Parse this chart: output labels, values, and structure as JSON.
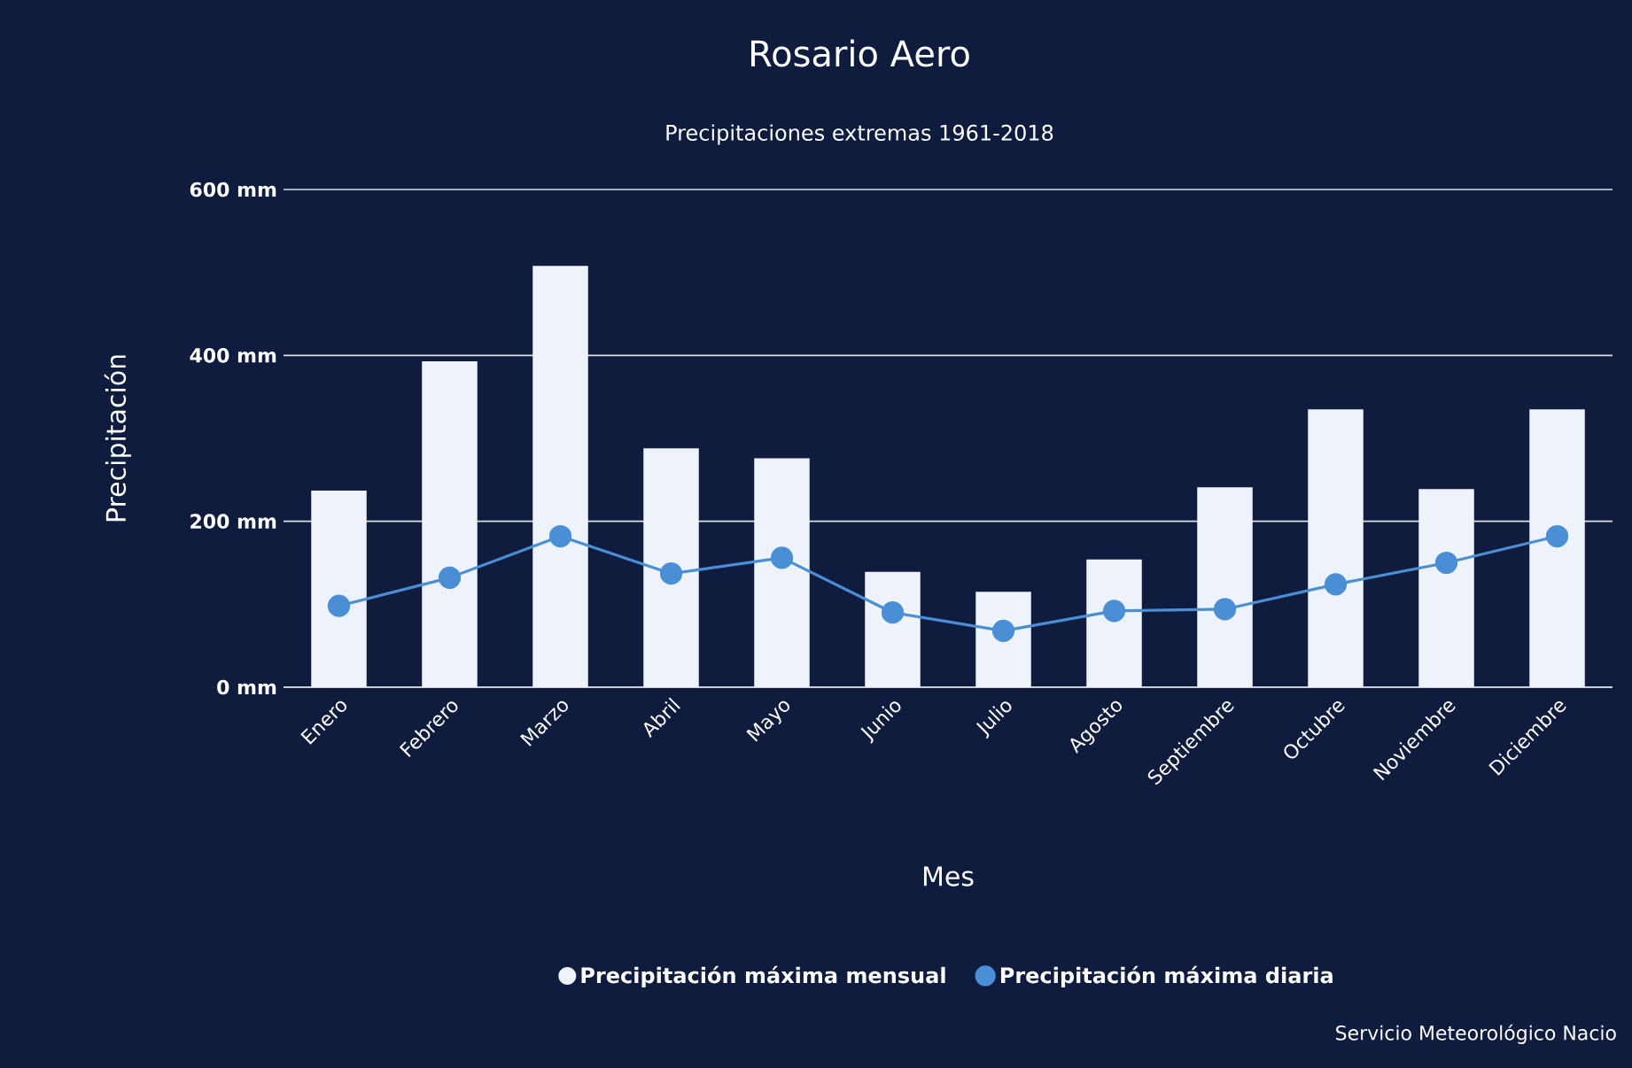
{
  "chart_data": {
    "type": "bar",
    "title": "Rosario Aero",
    "subtitle": "Precipitaciones extremas 1961-2018",
    "xlabel": "Mes",
    "ylabel": "Precipitación",
    "categories": [
      "Enero",
      "Febrero",
      "Marzo",
      "Abril",
      "Mayo",
      "Junio",
      "Julio",
      "Agosto",
      "Septiembre",
      "Octubre",
      "Noviembre",
      "Diciembre"
    ],
    "series": [
      {
        "name": "Precipitación máxima mensual",
        "color": "#eef2fb",
        "values": [
          237,
          393,
          508,
          288,
          276,
          139,
          115,
          154,
          241,
          335,
          239,
          335
        ]
      },
      {
        "name": "Precipitación máxima diaria",
        "type": "line",
        "color": "#4a8fd6",
        "values": [
          98,
          132,
          182,
          137,
          156,
          90,
          68,
          92,
          94,
          124,
          150,
          182
        ]
      }
    ],
    "ylim": [
      0,
      600
    ],
    "yticks": [
      {
        "value": 0,
        "label": "0 mm"
      },
      {
        "value": 200,
        "label": "200 mm"
      },
      {
        "value": 400,
        "label": "400 mm"
      },
      {
        "value": 600,
        "label": "600 mm"
      }
    ],
    "grid": "y",
    "legend": "bottom",
    "marker": "circle",
    "line_style": "solid",
    "annotations": [
      "Servicio Meteorológico Nacio"
    ]
  }
}
